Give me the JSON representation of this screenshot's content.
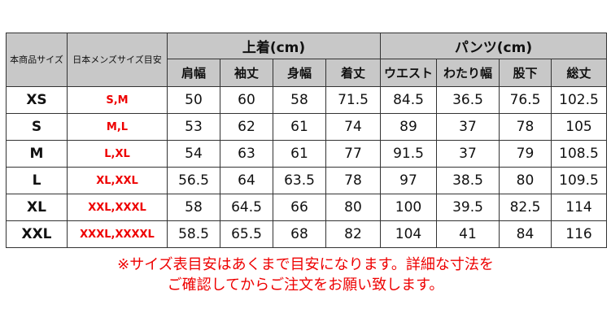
{
  "header": {
    "size_label": "本商品サイズ",
    "jp_label": "日本メンズサイズ目安",
    "tops_group": "上着(cm)",
    "pants_group": "パンツ(cm)",
    "columns": [
      "肩幅",
      "袖丈",
      "身幅",
      "着丈",
      "ウエスト",
      "わたり幅",
      "股下",
      "総丈"
    ]
  },
  "rows": [
    {
      "size": "XS",
      "jp": "S,M",
      "values": [
        "50",
        "60",
        "58",
        "71.5",
        "84.5",
        "36.5",
        "76.5",
        "102.5"
      ]
    },
    {
      "size": "S",
      "jp": "M,L",
      "values": [
        "53",
        "62",
        "61",
        "74",
        "89",
        "37",
        "78",
        "105"
      ]
    },
    {
      "size": "M",
      "jp": "L,XL",
      "values": [
        "54",
        "63",
        "61",
        "77",
        "91.5",
        "37",
        "79",
        "108.5"
      ]
    },
    {
      "size": "L",
      "jp": "XL,XXL",
      "values": [
        "56.5",
        "64",
        "63.5",
        "78",
        "97",
        "38.5",
        "80",
        "109.5"
      ]
    },
    {
      "size": "XL",
      "jp": "XXL,XXXL",
      "values": [
        "58",
        "64.5",
        "66",
        "80",
        "100",
        "39.5",
        "82.5",
        "114"
      ]
    },
    {
      "size": "XXL",
      "jp": "XXXL,XXXXL",
      "values": [
        "58.5",
        "65.5",
        "68",
        "82",
        "104",
        "41",
        "84",
        "116"
      ]
    }
  ],
  "note": {
    "line1": "※サイズ表目安はあくまで目安になります。詳細な寸法を",
    "line2": "ご確認してからご注文をお願い致します。"
  },
  "colors": {
    "header_bg": "#c8c8c8",
    "accent_red": "#e00000"
  }
}
